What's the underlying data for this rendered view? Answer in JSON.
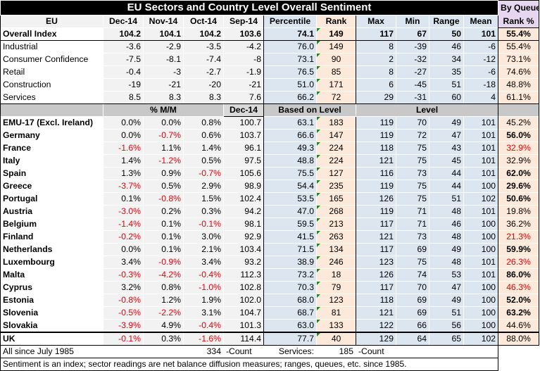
{
  "title": "EU Sectors and Country Level Overall Sentiment",
  "queue_header": [
    "By Queue",
    "Rank %"
  ],
  "header": {
    "eu": "EU",
    "months": [
      "Dec-14",
      "Nov-14",
      "Oct-14",
      "Sep-14"
    ],
    "percentile": "Percentile",
    "rank": "Rank",
    "max": "Max",
    "min": "Min",
    "range": "Range",
    "mean": "Mean"
  },
  "overall": {
    "label": "Overall Index",
    "values": [
      "104.2",
      "104.1",
      "104.2",
      "103.6",
      "74.1",
      "149",
      "117",
      "67",
      "50",
      "101",
      "55.4%"
    ]
  },
  "sectors": [
    {
      "label": "Industrial",
      "values": [
        "-3.6",
        "-2.9",
        "-3.5",
        "-4.2",
        "76.0",
        "149",
        "8",
        "-39",
        "46",
        "-6",
        "55.4%"
      ]
    },
    {
      "label": "Consumer Confidence",
      "values": [
        "-7.5",
        "-8.1",
        "-7.4",
        "-8",
        "73.1",
        "90",
        "2",
        "-32",
        "34",
        "-12",
        "73.1%"
      ]
    },
    {
      "label": "Retail",
      "values": [
        "-0.4",
        "-3",
        "-2.7",
        "-1.9",
        "76.5",
        "85",
        "8",
        "-27",
        "35",
        "-6",
        "74.6%"
      ]
    },
    {
      "label": "Construction",
      "values": [
        "-19",
        "-21",
        "-20",
        "-21",
        "51.0",
        "171",
        "6",
        "-45",
        "51",
        "-18",
        "48.8%"
      ]
    },
    {
      "label": "Services",
      "values": [
        "8.5",
        "8.3",
        "8.3",
        "7.6",
        "66.2",
        "72",
        "29",
        "-31",
        "60",
        "4",
        "61.1%"
      ]
    }
  ],
  "sub_header": {
    "mm": "% M/M",
    "dec": "Dec-14",
    "based": "Based on Level",
    "level": "Level"
  },
  "countries": [
    {
      "label": "EMU-17 (Excl. Ireland)",
      "values": [
        "0.0%",
        "0.0%",
        "0.8%",
        "100.7",
        "63.1",
        "183",
        "119",
        "70",
        "49",
        "101",
        "45.2%"
      ],
      "red": [],
      "bold_rank": false
    },
    {
      "label": "Germany",
      "values": [
        "0.0%",
        "-0.7%",
        "0.6%",
        "103.7",
        "66.6",
        "147",
        "119",
        "72",
        "47",
        "101",
        "56.0%"
      ],
      "red": [
        1
      ],
      "bold_rank": true
    },
    {
      "label": "France",
      "values": [
        "-1.6%",
        "1.1%",
        "1.4%",
        "96.1",
        "49.3",
        "224",
        "118",
        "75",
        "43",
        "101",
        "32.9%"
      ],
      "red": [
        0,
        10
      ],
      "bold_rank": false
    },
    {
      "label": "Italy",
      "values": [
        "1.4%",
        "-1.2%",
        "0.5%",
        "97.5",
        "48.8",
        "224",
        "121",
        "75",
        "45",
        "101",
        "32.9%"
      ],
      "red": [
        1
      ],
      "bold_rank": false
    },
    {
      "label": "Spain",
      "values": [
        "1.3%",
        "0.9%",
        "-0.7%",
        "105.6",
        "75.5",
        "127",
        "116",
        "73",
        "44",
        "101",
        "62.0%"
      ],
      "red": [
        2
      ],
      "bold_rank": true
    },
    {
      "label": "Greece",
      "values": [
        "-3.7%",
        "0.5%",
        "2.9%",
        "98.9",
        "54.4",
        "235",
        "119",
        "75",
        "44",
        "100",
        "29.6%"
      ],
      "red": [
        0
      ],
      "bold_rank": true
    },
    {
      "label": "Portugal",
      "values": [
        "0.1%",
        "-0.8%",
        "1.5%",
        "102.4",
        "53.5",
        "165",
        "126",
        "75",
        "51",
        "102",
        "50.6%"
      ],
      "red": [
        1
      ],
      "bold_rank": true
    },
    {
      "label": "Austria",
      "values": [
        "-3.0%",
        "0.2%",
        "0.3%",
        "94.2",
        "47.0",
        "268",
        "119",
        "71",
        "48",
        "101",
        "19.8%"
      ],
      "red": [
        0
      ],
      "bold_rank": false
    },
    {
      "label": "Belgium",
      "values": [
        "-1.4%",
        "0.1%",
        "-0.1%",
        "98.1",
        "59.5",
        "213",
        "117",
        "71",
        "46",
        "100",
        "36.2%"
      ],
      "red": [
        0,
        2
      ],
      "bold_rank": false
    },
    {
      "label": "Finland",
      "values": [
        "-0.2%",
        "0.1%",
        "3.0%",
        "92.9",
        "41.5",
        "263",
        "121",
        "73",
        "48",
        "100",
        "21.3%"
      ],
      "red": [
        0,
        10
      ],
      "bold_rank": false
    },
    {
      "label": "Netherlands",
      "values": [
        "0.0%",
        "0.1%",
        "2.1%",
        "103.4",
        "71.5",
        "134",
        "117",
        "69",
        "49",
        "100",
        "59.9%"
      ],
      "red": [],
      "bold_rank": true
    },
    {
      "label": "Luxembourg",
      "values": [
        "3.4%",
        "-0.9%",
        "3.4%",
        "93.2",
        "38.9",
        "246",
        "123",
        "75",
        "48",
        "101",
        "26.3%"
      ],
      "red": [
        1,
        10
      ],
      "bold_rank": false
    },
    {
      "label": "Malta",
      "values": [
        "-0.3%",
        "-4.2%",
        "-0.4%",
        "112.3",
        "73.2",
        "18",
        "126",
        "74",
        "53",
        "101",
        "86.0%"
      ],
      "red": [
        0,
        1,
        2
      ],
      "bold_rank": true
    },
    {
      "label": "Cyprus",
      "values": [
        "3.2%",
        "0.8%",
        "-1.0%",
        "102.8",
        "70.3",
        "79",
        "117",
        "70",
        "47",
        "100",
        "46.3%"
      ],
      "red": [
        2,
        10
      ],
      "bold_rank": false
    },
    {
      "label": "Estonia",
      "values": [
        "-0.8%",
        "1.2%",
        "1.9%",
        "102.0",
        "68.0",
        "123",
        "118",
        "69",
        "49",
        "100",
        "52.0%"
      ],
      "red": [
        0
      ],
      "bold_rank": true
    },
    {
      "label": "Slovenia",
      "values": [
        "-0.5%",
        "-2.2%",
        "3.1%",
        "104.7",
        "68.7",
        "81",
        "121",
        "69",
        "51",
        "100",
        "63.2%"
      ],
      "red": [
        0,
        1
      ],
      "bold_rank": true
    },
    {
      "label": "Slovakia",
      "values": [
        "-3.9%",
        "4.9%",
        "-0.4%",
        "101.3",
        "63.0",
        "133",
        "122",
        "66",
        "56",
        "100",
        "44.6%"
      ],
      "red": [
        0,
        2
      ],
      "bold_rank": false
    }
  ],
  "uk": {
    "label": "UK",
    "values": [
      "-0.1%",
      "0.3%",
      "-1.6%",
      "114.4",
      "77.7",
      "40",
      "129",
      "64",
      "65",
      "102",
      "88.0%"
    ],
    "red": [
      0,
      2
    ]
  },
  "footer": {
    "all_since": "All since July 1985",
    "count_value": "334",
    "count_label": "-Count",
    "services_label": "Services:",
    "services_value": "185",
    "services_count": "-Count",
    "note": "Sentiment is an index; sector readings are net balance diffusion measures; ranges, queues, etc. since 1985."
  }
}
